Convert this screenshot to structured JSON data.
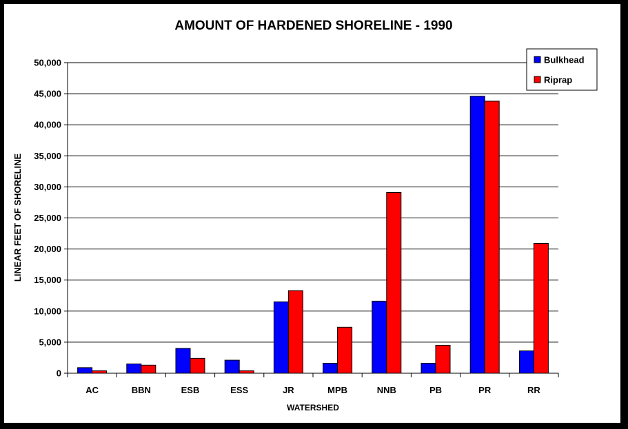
{
  "chart_data": {
    "type": "bar",
    "title": "AMOUNT OF HARDENED SHORELINE - 1990",
    "xlabel": "WATERSHED",
    "ylabel": "LINEAR FEET OF SHORELINE",
    "categories": [
      "AC",
      "BBN",
      "ESB",
      "ESS",
      "JR",
      "MPB",
      "NNB",
      "PB",
      "PR",
      "RR"
    ],
    "series": [
      {
        "name": "Bulkhead",
        "color": "#0000ff",
        "values": [
          900,
          1500,
          4000,
          2100,
          11500,
          1600,
          11600,
          1600,
          44600,
          3600
        ]
      },
      {
        "name": "Riprap",
        "color": "#ff0000",
        "values": [
          400,
          1300,
          2400,
          400,
          13300,
          7400,
          29100,
          4500,
          43800,
          20900
        ]
      }
    ],
    "ylim": [
      0,
      50000
    ],
    "yticks": [
      "0",
      "5,000",
      "10,000",
      "15,000",
      "20,000",
      "25,000",
      "30,000",
      "35,000",
      "40,000",
      "45,000",
      "50,000"
    ],
    "grid": true,
    "legend_position": "top-right"
  }
}
